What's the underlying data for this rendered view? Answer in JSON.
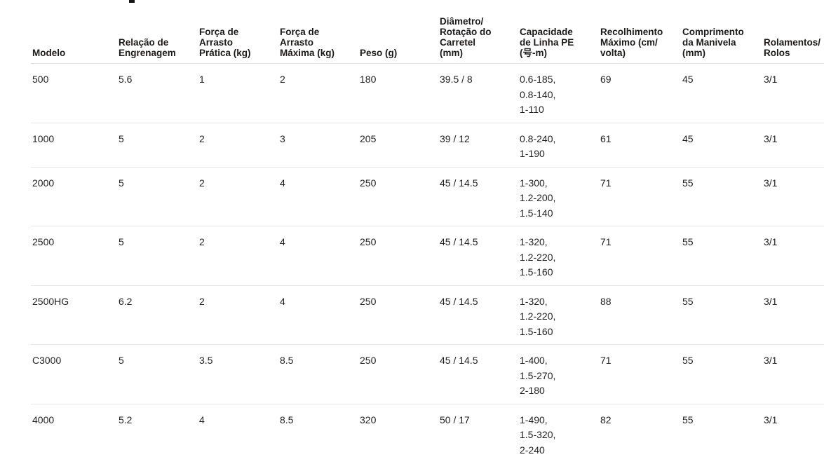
{
  "colors": {
    "background": "#ffffff",
    "text": "#201f1e",
    "header_text": "#1b1a19",
    "header_border": "#e1dfdd",
    "row_border": "#e8e6e4"
  },
  "table": {
    "columns": [
      {
        "key": "modelo",
        "label": "Modelo"
      },
      {
        "key": "relacao_engrenagem",
        "label": "Relação de\nEngrenagem"
      },
      {
        "key": "forca_arrasto_pratica",
        "label": "Força de\nArrasto\nPrática (kg)"
      },
      {
        "key": "forca_arrasto_maxima",
        "label": "Força de\nArrasto\nMáxima (kg)"
      },
      {
        "key": "peso",
        "label": "Peso (g)"
      },
      {
        "key": "diametro_rotacao",
        "label": "Diâmetro/\nRotação do\nCarretel\n(mm)"
      },
      {
        "key": "capacidade_linha_pe",
        "label": "Capacidade\nde Linha PE\n(号-m)"
      },
      {
        "key": "recolhimento_maximo",
        "label": "Recolhimento\nMáximo (cm/\nvolta)"
      },
      {
        "key": "comprimento_manivela",
        "label": "Comprimento\nda Manivela\n(mm)"
      },
      {
        "key": "rolamentos_rolos",
        "label": "Rolamentos/\nRolos"
      }
    ],
    "rows": [
      {
        "modelo": "500",
        "relacao_engrenagem": "5.6",
        "forca_arrasto_pratica": "1",
        "forca_arrasto_maxima": "2",
        "peso": "180",
        "diametro_rotacao": "39.5 / 8",
        "capacidade_linha_pe": "0.6-185,\n0.8-140,\n1-110",
        "recolhimento_maximo": "69",
        "comprimento_manivela": "45",
        "rolamentos_rolos": "3/1"
      },
      {
        "modelo": "1000",
        "relacao_engrenagem": "5",
        "forca_arrasto_pratica": "2",
        "forca_arrasto_maxima": "3",
        "peso": "205",
        "diametro_rotacao": "39 / 12",
        "capacidade_linha_pe": "0.8-240,\n1-190",
        "recolhimento_maximo": "61",
        "comprimento_manivela": "45",
        "rolamentos_rolos": "3/1"
      },
      {
        "modelo": "2000",
        "relacao_engrenagem": "5",
        "forca_arrasto_pratica": "2",
        "forca_arrasto_maxima": "4",
        "peso": "250",
        "diametro_rotacao": "45 / 14.5",
        "capacidade_linha_pe": "1-300,\n1.2-200,\n1.5-140",
        "recolhimento_maximo": "71",
        "comprimento_manivela": "55",
        "rolamentos_rolos": "3/1"
      },
      {
        "modelo": "2500",
        "relacao_engrenagem": "5",
        "forca_arrasto_pratica": "2",
        "forca_arrasto_maxima": "4",
        "peso": "250",
        "diametro_rotacao": "45 / 14.5",
        "capacidade_linha_pe": "1-320,\n1.2-220,\n1.5-160",
        "recolhimento_maximo": "71",
        "comprimento_manivela": "55",
        "rolamentos_rolos": "3/1"
      },
      {
        "modelo": "2500HG",
        "relacao_engrenagem": "6.2",
        "forca_arrasto_pratica": "2",
        "forca_arrasto_maxima": "4",
        "peso": "250",
        "diametro_rotacao": "45 / 14.5",
        "capacidade_linha_pe": "1-320,\n1.2-220,\n1.5-160",
        "recolhimento_maximo": "88",
        "comprimento_manivela": "55",
        "rolamentos_rolos": "3/1"
      },
      {
        "modelo": "C3000",
        "relacao_engrenagem": "5",
        "forca_arrasto_pratica": "3.5",
        "forca_arrasto_maxima": "8.5",
        "peso": "250",
        "diametro_rotacao": "45 / 14.5",
        "capacidade_linha_pe": "1-400,\n1.5-270,\n2-180",
        "recolhimento_maximo": "71",
        "comprimento_manivela": "55",
        "rolamentos_rolos": "3/1"
      },
      {
        "modelo": "4000",
        "relacao_engrenagem": "5.2",
        "forca_arrasto_pratica": "4",
        "forca_arrasto_maxima": "8.5",
        "peso": "320",
        "diametro_rotacao": "50 / 17",
        "capacidade_linha_pe": "1-490,\n1.5-320,\n2-240",
        "recolhimento_maximo": "82",
        "comprimento_manivela": "55",
        "rolamentos_rolos": "3/1"
      }
    ]
  }
}
